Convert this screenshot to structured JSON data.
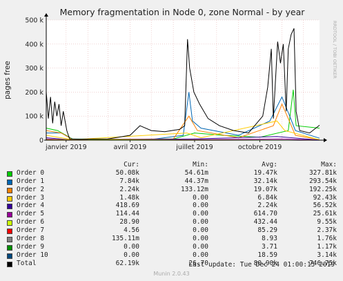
{
  "chart_data": {
    "type": "line",
    "title": "Memory fragmentation in Node 0, zone Normal - by year",
    "ylabel": "pages free",
    "side_label": "RRDTOOL / TOBI OETIKER",
    "ylim": [
      0,
      500000
    ],
    "y_ticks": [
      {
        "v": 0,
        "label": "0"
      },
      {
        "v": 100000,
        "label": "100 k"
      },
      {
        "v": 200000,
        "label": "200 k"
      },
      {
        "v": 300000,
        "label": "300 k"
      },
      {
        "v": 400000,
        "label": "400 k"
      },
      {
        "v": 500000,
        "label": "500 k"
      }
    ],
    "x_range": [
      "2018-12-04",
      "2019-12-24"
    ],
    "x_ticks": [
      {
        "date": "2019-01-01",
        "label": "janvier 2019"
      },
      {
        "date": "2019-04-01",
        "label": "avril 2019"
      },
      {
        "date": "2019-07-01",
        "label": "juillet 2019"
      },
      {
        "date": "2019-10-01",
        "label": "octobre 2019"
      }
    ],
    "x_grid_dates": [
      "2019-01-01",
      "2019-02-01",
      "2019-03-01",
      "2019-04-01",
      "2019-05-01",
      "2019-06-01",
      "2019-07-01",
      "2019-08-01",
      "2019-09-01",
      "2019-10-01",
      "2019-11-01",
      "2019-12-01"
    ],
    "grid": true,
    "series": [
      {
        "name": "Order 0",
        "color": "#00cc00",
        "points": [
          [
            "2018-12-04",
            50000
          ],
          [
            "2018-12-20",
            40000
          ],
          [
            "2019-01-10",
            5000
          ],
          [
            "2019-04-01",
            4000
          ],
          [
            "2019-06-01",
            5000
          ],
          [
            "2019-07-01",
            30000
          ],
          [
            "2019-08-10",
            20000
          ],
          [
            "2019-10-01",
            12000
          ],
          [
            "2019-11-10",
            40000
          ],
          [
            "2019-11-17",
            210000
          ],
          [
            "2019-11-21",
            60000
          ],
          [
            "2019-12-24",
            50000
          ]
        ]
      },
      {
        "name": "Order 1",
        "color": "#0066b3",
        "points": [
          [
            "2018-12-04",
            30000
          ],
          [
            "2018-12-25",
            30000
          ],
          [
            "2019-01-10",
            4000
          ],
          [
            "2019-05-01",
            3000
          ],
          [
            "2019-06-15",
            20000
          ],
          [
            "2019-06-23",
            200000
          ],
          [
            "2019-06-28",
            80000
          ],
          [
            "2019-07-10",
            50000
          ],
          [
            "2019-09-01",
            20000
          ],
          [
            "2019-10-15",
            80000
          ],
          [
            "2019-11-01",
            180000
          ],
          [
            "2019-11-12",
            100000
          ],
          [
            "2019-11-20",
            40000
          ],
          [
            "2019-12-24",
            8000
          ]
        ]
      },
      {
        "name": "Order 2",
        "color": "#ff8000",
        "points": [
          [
            "2018-12-04",
            40000
          ],
          [
            "2018-12-25",
            30000
          ],
          [
            "2019-01-10",
            3000
          ],
          [
            "2019-06-01",
            5000
          ],
          [
            "2019-06-23",
            100000
          ],
          [
            "2019-07-05",
            40000
          ],
          [
            "2019-09-01",
            10000
          ],
          [
            "2019-10-20",
            60000
          ],
          [
            "2019-11-01",
            150000
          ],
          [
            "2019-11-10",
            90000
          ],
          [
            "2019-11-20",
            20000
          ],
          [
            "2019-12-24",
            2000
          ]
        ]
      },
      {
        "name": "Order 3",
        "color": "#ffcc00",
        "points": [
          [
            "2018-12-04",
            20000
          ],
          [
            "2019-01-10",
            2000
          ],
          [
            "2019-06-20",
            30000
          ],
          [
            "2019-07-10",
            10000
          ],
          [
            "2019-10-25",
            80000
          ],
          [
            "2019-11-05",
            40000
          ],
          [
            "2019-12-24",
            1500
          ]
        ]
      },
      {
        "name": "Order 4",
        "color": "#330099",
        "points": [
          [
            "2018-12-04",
            10000
          ],
          [
            "2019-01-10",
            1000
          ],
          [
            "2019-07-01",
            5000
          ],
          [
            "2019-10-25",
            15000
          ],
          [
            "2019-12-24",
            400
          ]
        ]
      },
      {
        "name": "Order 5",
        "color": "#990099",
        "points": [
          [
            "2018-12-04",
            5000
          ],
          [
            "2019-01-10",
            500
          ],
          [
            "2019-07-01",
            2000
          ],
          [
            "2019-11-01",
            5000
          ],
          [
            "2019-12-24",
            100
          ]
        ]
      },
      {
        "name": "Order 6",
        "color": "#ccff00",
        "points": [
          [
            "2018-12-04",
            2000
          ],
          [
            "2019-12-24",
            30
          ]
        ]
      },
      {
        "name": "Order 7",
        "color": "#ff0000",
        "points": [
          [
            "2018-12-04",
            500
          ],
          [
            "2019-12-24",
            5
          ]
        ]
      },
      {
        "name": "Order 8",
        "color": "#808080",
        "points": [
          [
            "2018-12-04",
            0
          ],
          [
            "2019-12-24",
            0
          ]
        ]
      },
      {
        "name": "Order 9",
        "color": "#008f00",
        "points": [
          [
            "2018-12-04",
            0
          ],
          [
            "2019-12-24",
            0
          ]
        ]
      },
      {
        "name": "Order 10",
        "color": "#00487d",
        "points": [
          [
            "2018-12-04",
            0
          ],
          [
            "2019-12-24",
            0
          ]
        ]
      },
      {
        "name": "Total",
        "color": "#000000",
        "points": [
          [
            "2018-12-04",
            200000
          ],
          [
            "2018-12-07",
            90000
          ],
          [
            "2018-12-10",
            180000
          ],
          [
            "2018-12-13",
            70000
          ],
          [
            "2018-12-16",
            160000
          ],
          [
            "2018-12-19",
            100000
          ],
          [
            "2018-12-22",
            150000
          ],
          [
            "2018-12-25",
            60000
          ],
          [
            "2018-12-28",
            120000
          ],
          [
            "2019-01-02",
            40000
          ],
          [
            "2019-01-06",
            5000
          ],
          [
            "2019-01-20",
            4000
          ],
          [
            "2019-03-01",
            5000
          ],
          [
            "2019-04-01",
            20000
          ],
          [
            "2019-04-15",
            60000
          ],
          [
            "2019-05-01",
            40000
          ],
          [
            "2019-05-20",
            35000
          ],
          [
            "2019-06-10",
            45000
          ],
          [
            "2019-06-17",
            60000
          ],
          [
            "2019-06-21",
            420000
          ],
          [
            "2019-06-24",
            300000
          ],
          [
            "2019-06-30",
            200000
          ],
          [
            "2019-07-08",
            150000
          ],
          [
            "2019-07-20",
            90000
          ],
          [
            "2019-08-05",
            60000
          ],
          [
            "2019-08-25",
            40000
          ],
          [
            "2019-09-15",
            30000
          ],
          [
            "2019-10-05",
            100000
          ],
          [
            "2019-10-12",
            220000
          ],
          [
            "2019-10-17",
            380000
          ],
          [
            "2019-10-20",
            90000
          ],
          [
            "2019-10-26",
            410000
          ],
          [
            "2019-10-30",
            320000
          ],
          [
            "2019-11-03",
            400000
          ],
          [
            "2019-11-07",
            120000
          ],
          [
            "2019-11-10",
            380000
          ],
          [
            "2019-11-14",
            440000
          ],
          [
            "2019-11-18",
            465000
          ],
          [
            "2019-11-21",
            120000
          ],
          [
            "2019-11-26",
            40000
          ],
          [
            "2019-12-10",
            30000
          ],
          [
            "2019-12-24",
            62000
          ]
        ]
      }
    ]
  },
  "legend": {
    "headers": {
      "cur": "Cur:",
      "min": "Min:",
      "avg": "Avg:",
      "max": "Max:"
    },
    "rows": [
      {
        "name": "Order 0",
        "color": "#00cc00",
        "cur": "50.08k",
        "min": "54.61m",
        "avg": "19.47k",
        "max": "327.81k"
      },
      {
        "name": "Order 1",
        "color": "#0066b3",
        "cur": "7.84k",
        "min": "44.37m",
        "avg": "32.14k",
        "max": "293.54k"
      },
      {
        "name": "Order 2",
        "color": "#ff8000",
        "cur": "2.24k",
        "min": "133.12m",
        "avg": "19.07k",
        "max": "192.25k"
      },
      {
        "name": "Order 3",
        "color": "#ffcc00",
        "cur": "1.48k",
        "min": "0.00",
        "avg": "6.84k",
        "max": "92.43k"
      },
      {
        "name": "Order 4",
        "color": "#330099",
        "cur": "418.69",
        "min": "0.00",
        "avg": "2.24k",
        "max": "56.52k"
      },
      {
        "name": "Order 5",
        "color": "#990099",
        "cur": "114.44",
        "min": "0.00",
        "avg": "614.70",
        "max": "25.61k"
      },
      {
        "name": "Order 6",
        "color": "#ccff00",
        "cur": "28.90",
        "min": "0.00",
        "avg": "432.44",
        "max": "9.55k"
      },
      {
        "name": "Order 7",
        "color": "#ff0000",
        "cur": "4.56",
        "min": "0.00",
        "avg": "85.29",
        "max": "2.37k"
      },
      {
        "name": "Order 8",
        "color": "#808080",
        "cur": "135.11m",
        "min": "0.00",
        "avg": "8.93",
        "max": "1.76k"
      },
      {
        "name": "Order 9",
        "color": "#008f00",
        "cur": "0.00",
        "min": "0.00",
        "avg": "3.71",
        "max": "1.17k"
      },
      {
        "name": "Order 10",
        "color": "#00487d",
        "cur": "0.00",
        "min": "0.00",
        "avg": "18.59",
        "max": "3.14k"
      },
      {
        "name": "Total",
        "color": "#000000",
        "cur": "62.19k",
        "min": "26.70",
        "avg": "80.90k",
        "max": "746.75k"
      }
    ]
  },
  "footer": {
    "last_update": "Last update: Tue Dec 24 01:00:15 2019",
    "munin": "Munin 2.0.43"
  }
}
